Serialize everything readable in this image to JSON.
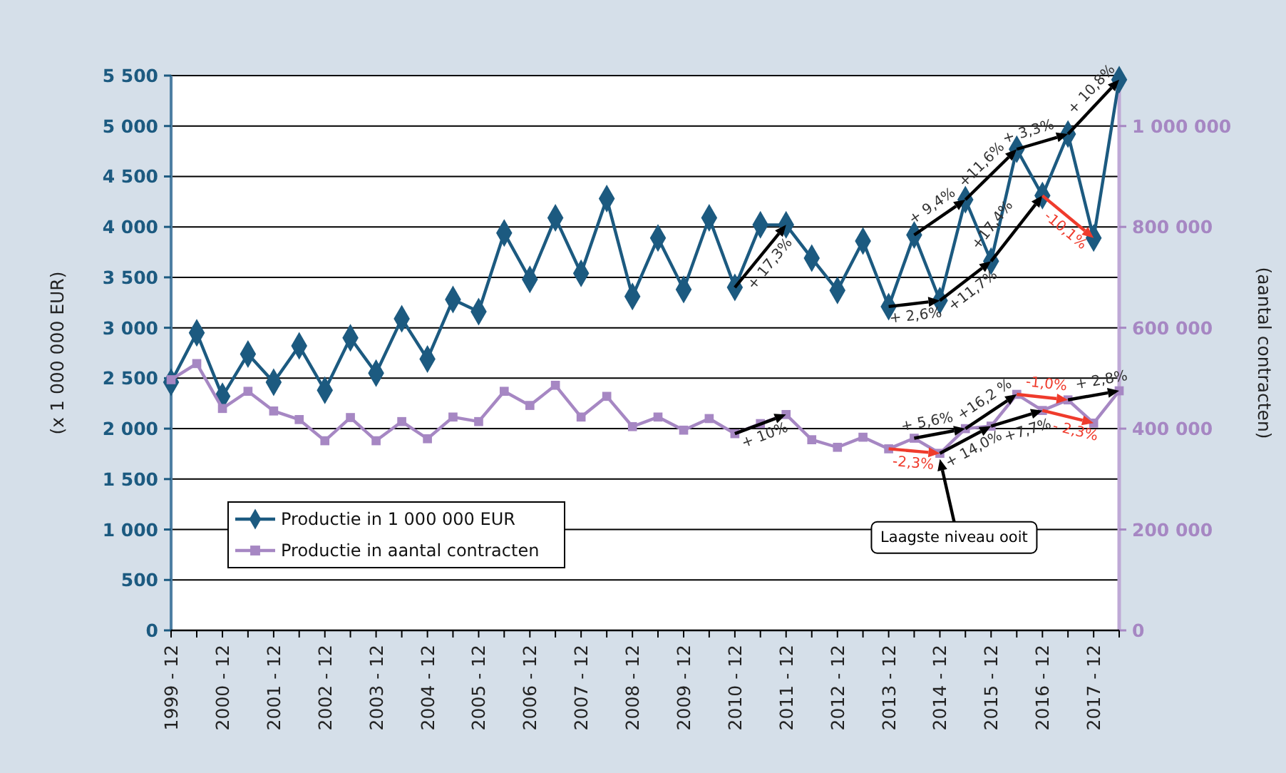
{
  "chart_data": {
    "type": "line",
    "ylabel": "(x 1 000 000 EUR)",
    "y2label": "(aantal contracten)",
    "x": [
      "1999-12",
      "2000-06",
      "2000-12",
      "2001-06",
      "2001-12",
      "2002-06",
      "2002-12",
      "2003-06",
      "2003-12",
      "2004-06",
      "2004-12",
      "2005-06",
      "2005-12",
      "2006-06",
      "2006-12",
      "2007-06",
      "2007-12",
      "2008-06",
      "2008-12",
      "2009-06",
      "2009-12",
      "2010-06",
      "2010-12",
      "2011-06",
      "2011-12",
      "2012-06",
      "2012-12",
      "2013-06",
      "2013-12",
      "2014-06",
      "2014-12",
      "2015-06",
      "2015-12",
      "2016-06",
      "2016-12",
      "2017-06",
      "2017-12",
      "2018-06"
    ],
    "series": [
      {
        "name": "Productie in 1 000 000 EUR",
        "color": "#1c5a80",
        "marker": "diamond",
        "values": [
          2460,
          2950,
          2320,
          2740,
          2460,
          2820,
          2380,
          2900,
          2550,
          3090,
          2690,
          3280,
          3160,
          3940,
          3480,
          4090,
          3540,
          4280,
          3310,
          3890,
          3380,
          4090,
          3400,
          4020,
          4020,
          3690,
          3370,
          3860,
          3210,
          3920,
          3270,
          4270,
          3660,
          4770,
          4310,
          4920,
          3890,
          5460
        ]
      },
      {
        "name": "Productie in aantal contracten",
        "color": "#a687c3",
        "marker": "square",
        "axis": "y2",
        "values": [
          497000,
          529000,
          440000,
          474000,
          435000,
          418000,
          376000,
          422000,
          376000,
          414000,
          380000,
          423000,
          414000,
          474000,
          446000,
          486000,
          423000,
          464000,
          404000,
          423000,
          397000,
          420000,
          390000,
          410000,
          428000,
          378000,
          363000,
          383000,
          360000,
          381000,
          351000,
          400000,
          405000,
          468000,
          436000,
          457000,
          411000,
          475000
        ]
      }
    ],
    "xlim": [
      "1999-12",
      "2018-06"
    ],
    "xticks": [
      {
        "value": "1999-12",
        "label": "1999 - 12"
      },
      {
        "value": "2000-06",
        "label": null
      },
      {
        "value": "2000-12",
        "label": "2000 - 12"
      },
      {
        "value": "2001-06",
        "label": null
      },
      {
        "value": "2001-12",
        "label": "2001 - 12"
      },
      {
        "value": "2002-06",
        "label": null
      },
      {
        "value": "2002-12",
        "label": "2002 - 12"
      },
      {
        "value": "2003-06",
        "label": null
      },
      {
        "value": "2003-12",
        "label": "2003 - 12"
      },
      {
        "value": "2004-06",
        "label": null
      },
      {
        "value": "2004-12",
        "label": "2004 - 12"
      },
      {
        "value": "2005-06",
        "label": null
      },
      {
        "value": "2005-12",
        "label": "2005 - 12"
      },
      {
        "value": "2006-06",
        "label": null
      },
      {
        "value": "2006-12",
        "label": "2006 - 12"
      },
      {
        "value": "2007-06",
        "label": null
      },
      {
        "value": "2007-12",
        "label": "2007 - 12"
      },
      {
        "value": "2008-06",
        "label": null
      },
      {
        "value": "2008-12",
        "label": "2008 - 12"
      },
      {
        "value": "2009-06",
        "label": null
      },
      {
        "value": "2009-12",
        "label": "2009 - 12"
      },
      {
        "value": "2010-06",
        "label": null
      },
      {
        "value": "2010-12",
        "label": "2010 - 12"
      },
      {
        "value": "2011-06",
        "label": null
      },
      {
        "value": "2011-12",
        "label": "2011 - 12"
      },
      {
        "value": "2012-06",
        "label": null
      },
      {
        "value": "2012-12",
        "label": "2012 - 12"
      },
      {
        "value": "2013-06",
        "label": null
      },
      {
        "value": "2013-12",
        "label": "2013 - 12"
      },
      {
        "value": "2014-06",
        "label": null
      },
      {
        "value": "2014-12",
        "label": "2014 - 12"
      },
      {
        "value": "2015-06",
        "label": null
      },
      {
        "value": "2015-12",
        "label": "2015 - 12"
      },
      {
        "value": "2016-06",
        "label": null
      },
      {
        "value": "2016-12",
        "label": "2016 - 12"
      },
      {
        "value": "2017-06",
        "label": null
      },
      {
        "value": "2017-12",
        "label": "2017 - 12"
      },
      {
        "value": "2018-06",
        "label": null
      }
    ],
    "ylim": [
      0,
      5500
    ],
    "yticks": [
      0,
      500,
      {
        "value": 1000,
        "label": "1 000"
      },
      {
        "value": 1500,
        "label": "1 500"
      },
      {
        "value": 2000,
        "label": "2 000"
      },
      {
        "value": 2500,
        "label": "2 500"
      },
      {
        "value": 3000,
        "label": "3 000"
      },
      {
        "value": 3500,
        "label": "3 500"
      },
      {
        "value": 4000,
        "label": "4 000"
      },
      {
        "value": 4500,
        "label": "4 500"
      },
      {
        "value": 5000,
        "label": "5 000"
      },
      {
        "value": 5500,
        "label": "5 500"
      }
    ],
    "y2lim": [
      0,
      1100000
    ],
    "y2ticks": [
      0,
      {
        "value": 200000,
        "label": "200 000"
      },
      {
        "value": 400000,
        "label": "400 000"
      },
      {
        "value": 600000,
        "label": "600 000"
      },
      {
        "value": 800000,
        "label": "800 000"
      },
      {
        "value": 1000000,
        "label": "1 000 000"
      }
    ],
    "grid": "y",
    "legend": "bottom left",
    "line_style": "solid",
    "annotations": [
      "+ 17,3%",
      "+ 2,6%",
      {
        "text": "+11,7%",
        "x": "2015-12",
        "y": 3660
      },
      {
        "text": "+17,4%",
        "x": "2016-12",
        "y": 4310
      },
      "-10,1%",
      "+ 9,4%",
      "+11,6%",
      "+ 3,3%",
      "+ 10,8%",
      "+ 10%",
      "-2,3%",
      "+ 5,6%",
      "+16,2 %",
      "+ 14,0%",
      "+7,7%",
      "-1,0%",
      "- 2,3%",
      "+ 2,8%",
      "Laagste niveau ooit"
    ]
  }
}
